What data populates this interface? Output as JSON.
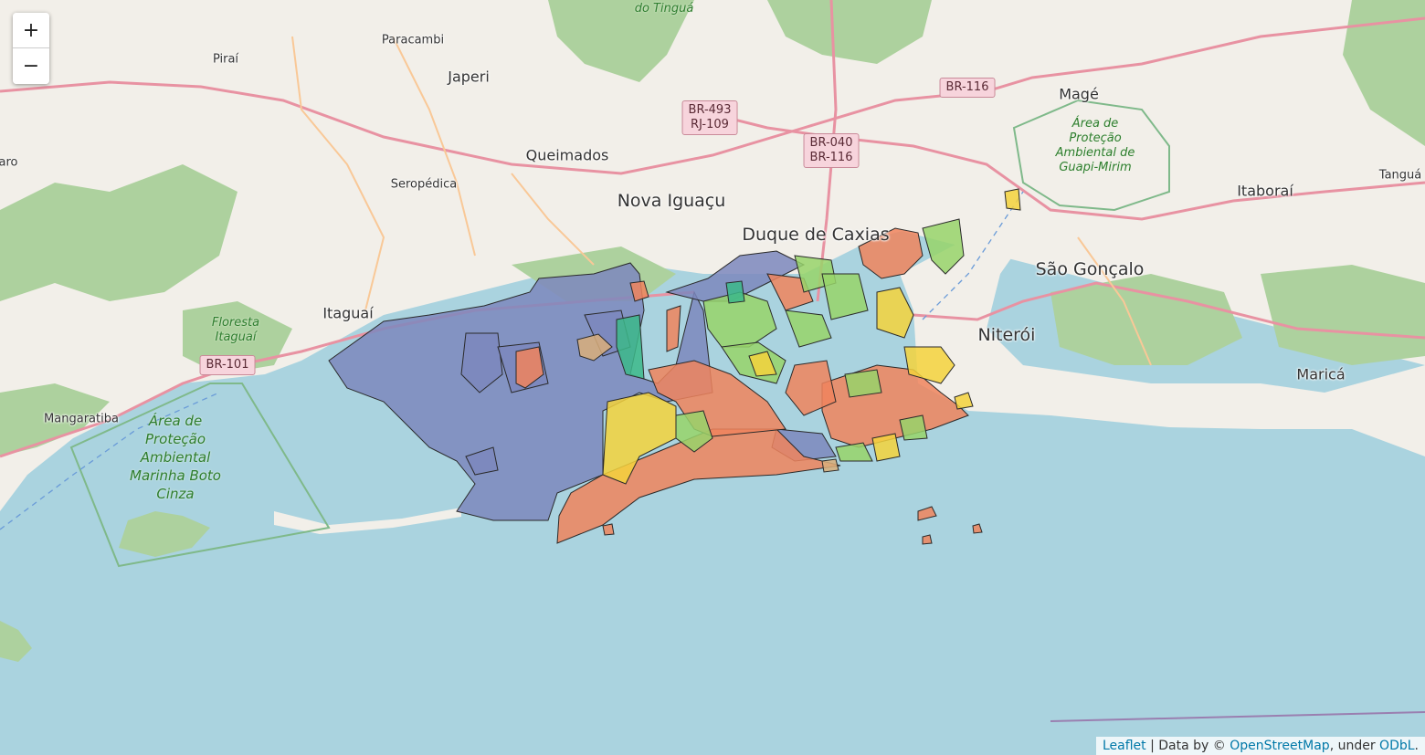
{
  "colors": {
    "sea": "#aad3df",
    "land": "#f2efe9",
    "forest": "#add19e",
    "protected_border": "#7fb98a",
    "road_primary": "#e892a2",
    "road_secondary": "#f9c897",
    "choropleth": {
      "blue": "#7d87bd",
      "orange": "#f0845d",
      "light_green": "#98d46a",
      "yellow": "#f5d23c",
      "teal": "#3cb88a",
      "tan": "#d9ae7a"
    }
  },
  "controls": {
    "zoom_in": "+",
    "zoom_out": "−"
  },
  "labels": {
    "tingua": "do Tinguá",
    "paracambi": "Paracambi",
    "pirai": "Piraí",
    "japeri": "Japeri",
    "queimados": "Queimados",
    "seropedica": "Seropédica",
    "nova_iguacu": "Nova Iguaçu",
    "duque": "Duque de Caxias",
    "mage": "Magé",
    "itaborai": "Itaboraí",
    "tangua": "Tanguá",
    "sao_goncalo": "São Gonçalo",
    "niteroi": "Niterói",
    "marica": "Maricá",
    "itaguai": "Itaguaí",
    "floresta_itaguai": "Floresta Itaguaí",
    "mangaratiba": "Mangaratiba",
    "apa_marinha": "Área de Proteção Ambiental Marinha Boto Cinza",
    "apa_guapi": "Área de Proteção Ambiental de Guapi-Mirim",
    "piraro": "aro"
  },
  "shields": {
    "br116_top": "BR-116",
    "br493": "BR-493\nRJ-109",
    "br040": "BR-040\nBR-116",
    "br101": "BR-101"
  },
  "attribution": {
    "leaflet": "Leaflet",
    "sep1": " | Data by © ",
    "osm": "OpenStreetMap",
    "sep2": ", under ",
    "odbl": "ODbL",
    "end": "."
  }
}
